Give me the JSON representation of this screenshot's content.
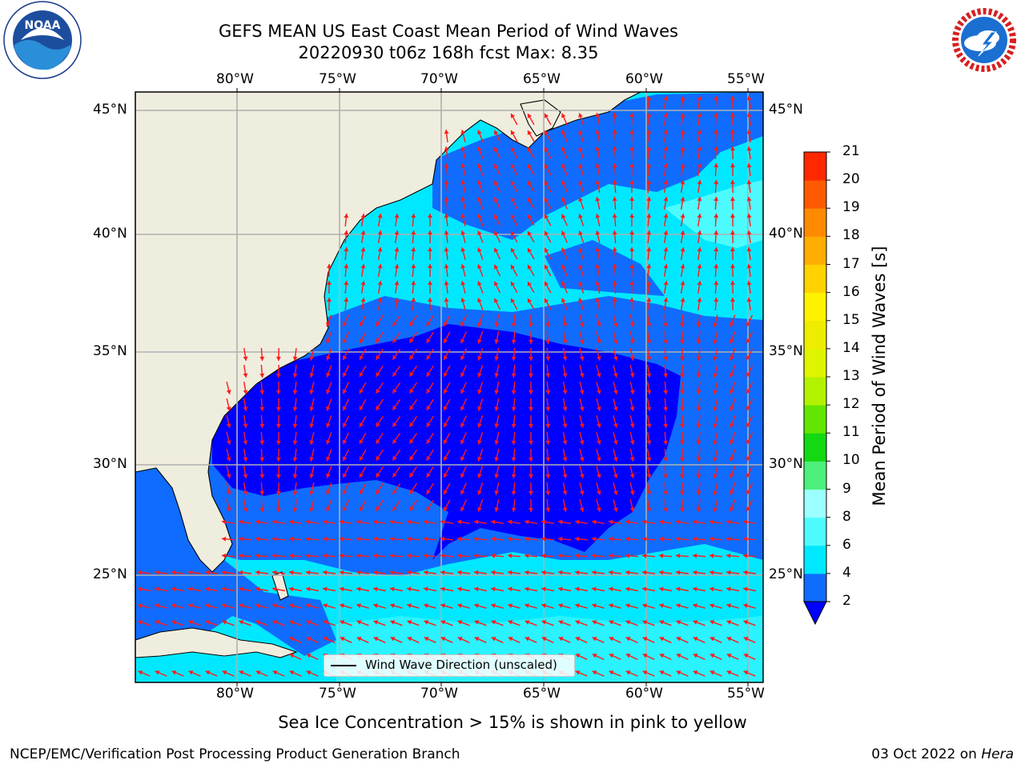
{
  "title": {
    "line1": "GEFS MEAN US East Coast Mean Period of Wind Waves",
    "line2": "20220930 t06z 168h fcst   Max: 8.35"
  },
  "logos": {
    "left": {
      "name": "noaa-logo",
      "text": "NOAA",
      "ring_text": "NATIONAL OCEANIC AND ATMOSPHERIC ADMINISTRATION · U.S. DEPARTMENT OF COMMERCE"
    },
    "right": {
      "name": "nws-logo",
      "ring_text": "NATIONAL WEATHER SERVICE"
    }
  },
  "map": {
    "lon_ticks": [
      "80°W",
      "75°W",
      "70°W",
      "65°W",
      "60°W",
      "55°W"
    ],
    "lat_ticks": [
      "45°N",
      "40°N",
      "35°N",
      "30°N",
      "25°N"
    ],
    "lon_range": [
      -85,
      -54.3
    ],
    "lat_range": [
      20.5,
      46.4
    ],
    "land_color": "#efedde",
    "grid_color": "#b0b0b0",
    "arrow_color": "#ff1a1a"
  },
  "colorbar": {
    "label": "Mean Period of Wind Waves [s]",
    "ticks": [
      "2",
      "4",
      "6",
      "8",
      "9",
      "10",
      "11",
      "12",
      "13",
      "14",
      "15",
      "16",
      "17",
      "18",
      "19",
      "20",
      "21"
    ],
    "colors": [
      "#0f6cff",
      "#00e8ff",
      "#4dfbff",
      "#9cffff",
      "#4cf07a",
      "#12d912",
      "#62e600",
      "#b2f200",
      "#dff400",
      "#eeec00",
      "#fff200",
      "#ffd200",
      "#ffae00",
      "#ff8a00",
      "#ff5a00",
      "#ff2800",
      "#ff0000"
    ],
    "under_color": "#0000ff"
  },
  "legend": {
    "label": "Wind Wave Direction (unscaled)"
  },
  "caption": "Sea Ice Concentration > 15% is shown in pink to yellow",
  "footer": {
    "left": "NCEP/EMC/Verification Post Processing Product Generation Branch",
    "right_prefix": "03 Oct 2022 on ",
    "right_host": "Hera"
  },
  "field_colors": {
    "lt2": "#0000ff",
    "b2_4": "#0f6cff",
    "b4_6": "#00e8ff",
    "b6_8": "#4dfbff"
  }
}
